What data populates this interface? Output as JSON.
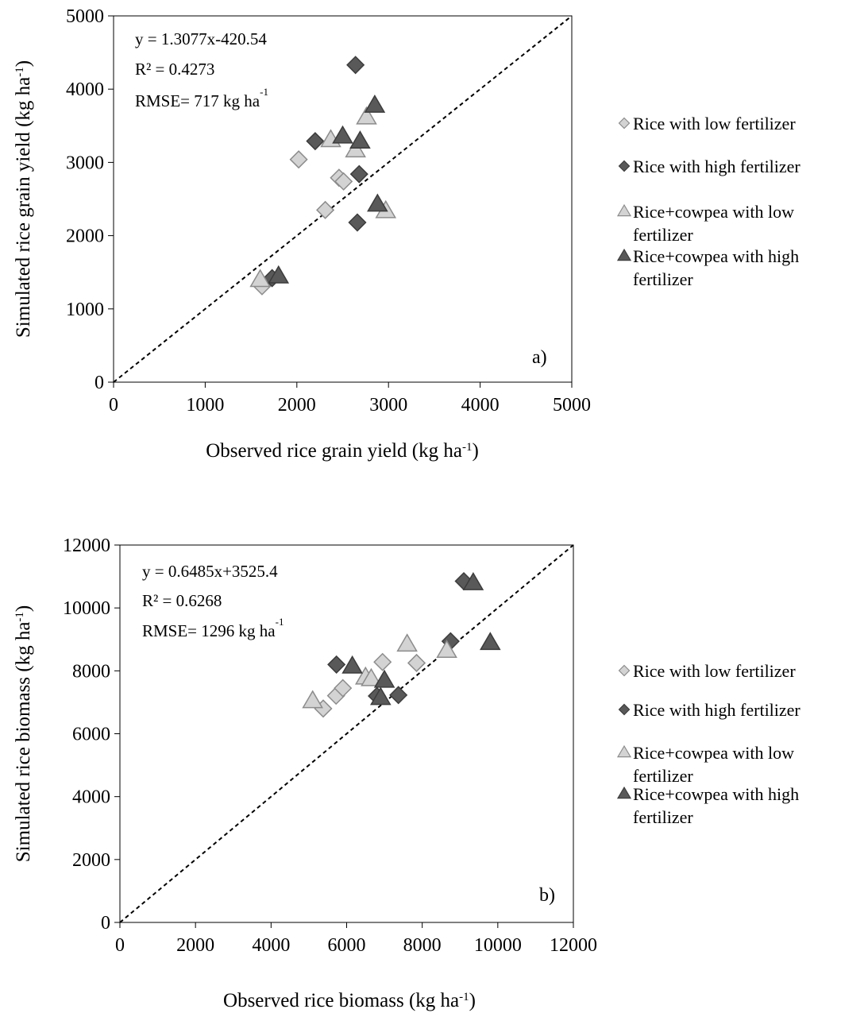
{
  "chart_data": [
    {
      "type": "scatter",
      "panel_label": "a)",
      "xlabel_main": "Observed rice grain yield (kg ha",
      "xlabel_sup": "-1",
      "xlabel_end": ")",
      "ylabel_main": "Simulated rice grain yield (kg ha",
      "ylabel_sup": "-1",
      "ylabel_end": ")",
      "xlim": [
        0,
        5000
      ],
      "ylim": [
        0,
        5000
      ],
      "xticks": [
        0,
        1000,
        2000,
        3000,
        4000,
        5000
      ],
      "yticks": [
        0,
        1000,
        2000,
        3000,
        4000,
        5000
      ],
      "xtick_labels": [
        "0",
        "1000",
        "2000",
        "3000",
        "4000",
        "5000"
      ],
      "ytick_labels": [
        "0",
        "1000",
        "2000",
        "3000",
        "4000",
        "5000"
      ],
      "reference_line": "1:1",
      "annotation": {
        "equation": "y = 1.3077x-420.54",
        "r2": "R² = 0.4273",
        "rmse_main": "RMSE= 717 kg ha",
        "rmse_sup": "-1"
      },
      "legend": [
        {
          "label_lines": [
            "Rice with low fertilizer"
          ],
          "marker": "diamond",
          "color": "#d3d3d3"
        },
        {
          "label_lines": [
            "Rice with high fertilizer"
          ],
          "marker": "diamond",
          "color": "#595959"
        },
        {
          "label_lines": [
            "Rice+cowpea with low",
            "fertilizer"
          ],
          "marker": "triangle",
          "color": "#d3d3d3"
        },
        {
          "label_lines": [
            "Rice+cowpea with high",
            "fertilizer"
          ],
          "marker": "triangle",
          "color": "#595959"
        }
      ],
      "series": [
        {
          "marker": "diamond",
          "color": "#d3d3d3",
          "points": [
            [
              1620,
              1310
            ],
            [
              2020,
              3040
            ],
            [
              2310,
              2350
            ],
            [
              2460,
              2790
            ],
            [
              2510,
              2740
            ]
          ]
        },
        {
          "marker": "diamond",
          "color": "#595959",
          "points": [
            [
              2640,
              4330
            ],
            [
              2200,
              3290
            ],
            [
              2680,
              2840
            ],
            [
              2660,
              2180
            ],
            [
              1730,
              1420
            ]
          ]
        },
        {
          "marker": "triangle",
          "color": "#d3d3d3",
          "points": [
            [
              2370,
              3310
            ],
            [
              2640,
              3170
            ],
            [
              2760,
              3620
            ],
            [
              2970,
              2340
            ],
            [
              1600,
              1400
            ]
          ]
        },
        {
          "marker": "triangle",
          "color": "#595959",
          "points": [
            [
              2500,
              3360
            ],
            [
              2690,
              3290
            ],
            [
              2850,
              3780
            ],
            [
              2880,
              2430
            ],
            [
              1800,
              1450
            ]
          ]
        }
      ]
    },
    {
      "type": "scatter",
      "panel_label": "b)",
      "xlabel_main": "Observed rice biomass (kg ha",
      "xlabel_sup": "-1",
      "xlabel_end": ")",
      "ylabel_main": "Simulated rice biomass (kg ha",
      "ylabel_sup": "-1",
      "ylabel_end": ")",
      "xlim": [
        0,
        12000
      ],
      "ylim": [
        0,
        12000
      ],
      "xticks": [
        0,
        2000,
        4000,
        6000,
        8000,
        10000,
        12000
      ],
      "yticks": [
        0,
        2000,
        4000,
        6000,
        8000,
        10000,
        12000
      ],
      "xtick_labels": [
        "0",
        "2000",
        "4000",
        "6000",
        "8000",
        "10000",
        "12000"
      ],
      "ytick_labels": [
        "0",
        "2000",
        "4000",
        "6000",
        "8000",
        "10000",
        "12000"
      ],
      "reference_line": "1:1",
      "annotation": {
        "equation": "y = 0.6485x+3525.4",
        "r2": "R² = 0.6268",
        "rmse_main": "RMSE= 1296 kg ha",
        "rmse_sup": "-1"
      },
      "legend": [
        {
          "label_lines": [
            "Rice with low fertilizer"
          ],
          "marker": "diamond",
          "color": "#d3d3d3"
        },
        {
          "label_lines": [
            "Rice with high fertilizer"
          ],
          "marker": "diamond",
          "color": "#595959"
        },
        {
          "label_lines": [
            "Rice+cowpea with low",
            "fertilizer"
          ],
          "marker": "triangle",
          "color": "#d3d3d3"
        },
        {
          "label_lines": [
            "Rice+cowpea with high",
            "fertilizer"
          ],
          "marker": "triangle",
          "color": "#595959"
        }
      ],
      "series": [
        {
          "marker": "diamond",
          "color": "#d3d3d3",
          "points": [
            [
              5380,
              6800
            ],
            [
              5720,
              7210
            ],
            [
              5900,
              7450
            ],
            [
              6950,
              8280
            ],
            [
              7850,
              8250
            ]
          ]
        },
        {
          "marker": "diamond",
          "color": "#595959",
          "points": [
            [
              5730,
              8200
            ],
            [
              7370,
              7230
            ],
            [
              8750,
              8940
            ],
            [
              9100,
              10850
            ],
            [
              6800,
              7200
            ]
          ]
        },
        {
          "marker": "triangle",
          "color": "#d3d3d3",
          "points": [
            [
              5100,
              7050
            ],
            [
              6500,
              7800
            ],
            [
              6650,
              7750
            ],
            [
              7600,
              8850
            ],
            [
              8650,
              8650
            ]
          ]
        },
        {
          "marker": "triangle",
          "color": "#595959",
          "points": [
            [
              6150,
              8150
            ],
            [
              6900,
              7150
            ],
            [
              7000,
              7700
            ],
            [
              9350,
              10800
            ],
            [
              9800,
              8900
            ]
          ]
        }
      ]
    }
  ]
}
